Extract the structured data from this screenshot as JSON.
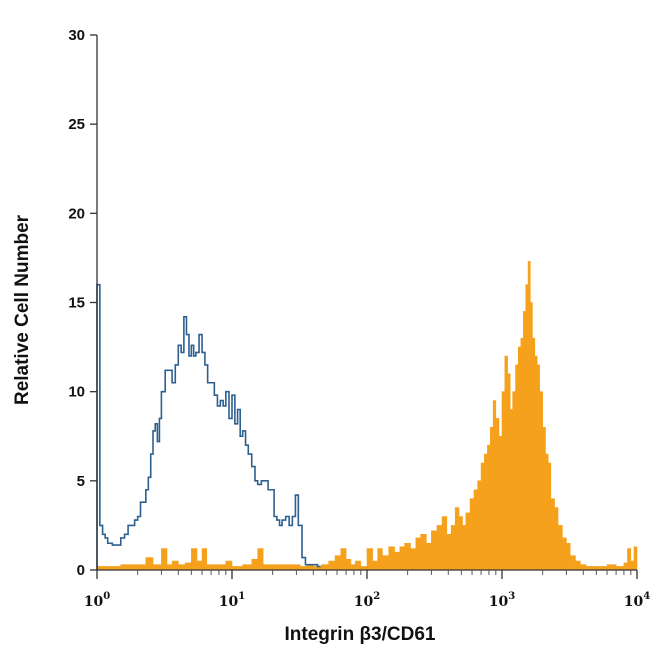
{
  "chart_data": {
    "type": "histogram",
    "xlabel": "Integrin β3/CD61",
    "ylabel": "Relative Cell Number",
    "x_scale": "log",
    "xlim": [
      1,
      10000
    ],
    "ylim": [
      0,
      30
    ],
    "y_ticks": [
      0,
      5,
      10,
      15,
      20,
      25,
      30
    ],
    "x_ticks": [
      {
        "base": "10",
        "exp": "0",
        "value": 1
      },
      {
        "base": "10",
        "exp": "1",
        "value": 10
      },
      {
        "base": "10",
        "exp": "2",
        "value": 100
      },
      {
        "base": "10",
        "exp": "3",
        "value": 1000
      },
      {
        "base": "10",
        "exp": "4",
        "value": 10000
      }
    ],
    "grid": false,
    "series": [
      {
        "style": "outline",
        "color": "#2d5f8f",
        "x": [
          1.0,
          1.05,
          1.1,
          1.15,
          1.2,
          1.3,
          1.4,
          1.5,
          1.6,
          1.7,
          1.8,
          1.9,
          2.0,
          2.1,
          2.2,
          2.3,
          2.4,
          2.5,
          2.6,
          2.7,
          2.8,
          2.9,
          3.0,
          3.2,
          3.4,
          3.6,
          3.8,
          4.0,
          4.2,
          4.4,
          4.6,
          4.8,
          5.0,
          5.2,
          5.4,
          5.7,
          6.0,
          6.3,
          6.6,
          7.0,
          7.4,
          7.8,
          8.2,
          8.6,
          9.0,
          9.5,
          10.0,
          10.5,
          11.0,
          11.5,
          12.0,
          12.6,
          13.2,
          14.0,
          14.8,
          15.5,
          16.5,
          17.5,
          18.5,
          19.5,
          20.5,
          21.5,
          22.5,
          23.5,
          25.0,
          26.5,
          28.0,
          29.5,
          31.0,
          33.0,
          35.0,
          37.0,
          39.0,
          41.0,
          43.0
        ],
        "y": [
          16.0,
          2.5,
          2.0,
          1.8,
          1.5,
          1.4,
          1.4,
          1.8,
          2.0,
          2.5,
          2.5,
          2.8,
          3.0,
          3.8,
          3.8,
          4.5,
          5.2,
          6.5,
          7.8,
          8.2,
          7.2,
          8.5,
          10.0,
          11.2,
          11.2,
          10.5,
          11.5,
          12.6,
          12.2,
          14.2,
          13.2,
          12.0,
          12.6,
          12.0,
          12.2,
          13.2,
          12.2,
          11.5,
          10.5,
          10.5,
          9.8,
          9.2,
          9.5,
          9.2,
          10.0,
          8.5,
          9.8,
          8.2,
          9.0,
          7.5,
          7.8,
          7.0,
          6.5,
          5.8,
          5.0,
          4.8,
          5.0,
          5.0,
          4.5,
          4.5,
          3.0,
          2.8,
          2.5,
          2.8,
          3.0,
          2.5,
          3.0,
          4.2,
          2.5,
          0.7,
          0.3,
          0.3,
          0.3,
          0.3,
          0.2
        ]
      },
      {
        "style": "filled",
        "color": "#f5a11c",
        "x": [
          1.0,
          1.5,
          2.0,
          2.3,
          2.6,
          3.0,
          3.3,
          3.6,
          4.0,
          4.5,
          5.0,
          5.5,
          6.0,
          6.5,
          7.0,
          8.0,
          9.0,
          10.0,
          12.0,
          14.0,
          15.5,
          17.0,
          20.0,
          24.0,
          28.0,
          32.0,
          36.0,
          40.0,
          46.0,
          52.0,
          58.0,
          64.0,
          70.0,
          76.0,
          82.0,
          90.0,
          100.0,
          110.0,
          120.0,
          130.0,
          145.0,
          160.0,
          175.0,
          190.0,
          210.0,
          230.0,
          250.0,
          275.0,
          300.0,
          330.0,
          360.0,
          390.0,
          420.0,
          450.0,
          480.0,
          510.0,
          540.0,
          580.0,
          620.0,
          660.0,
          700.0,
          740.0,
          780.0,
          820.0,
          860.0,
          900.0,
          950.0,
          1000.0,
          1050.0,
          1100.0,
          1150.0,
          1200.0,
          1260.0,
          1320.0,
          1380.0,
          1440.0,
          1500.0,
          1560.0,
          1620.0,
          1680.0,
          1750.0,
          1820.0,
          1900.0,
          2000.0,
          2100.0,
          2200.0,
          2300.0,
          2450.0,
          2600.0,
          2800.0,
          3000.0,
          3200.0,
          3500.0,
          3800.0,
          4200.0,
          5000.0,
          6000.0,
          7000.0,
          8000.0,
          8500.0,
          9000.0,
          9500.0
        ],
        "y": [
          0.2,
          0.3,
          0.3,
          0.7,
          0.3,
          1.2,
          0.3,
          0.5,
          0.3,
          0.4,
          1.2,
          0.5,
          1.2,
          0.3,
          0.3,
          0.3,
          0.5,
          0.2,
          0.3,
          0.6,
          1.2,
          0.3,
          0.3,
          0.3,
          0.3,
          0.2,
          0.3,
          0.2,
          0.3,
          0.5,
          0.8,
          1.2,
          0.6,
          0.3,
          0.5,
          0.2,
          1.2,
          0.5,
          1.2,
          0.8,
          1.3,
          1.0,
          1.3,
          1.5,
          1.2,
          1.8,
          2.0,
          1.5,
          2.2,
          2.5,
          3.0,
          2.0,
          2.5,
          3.5,
          3.0,
          2.5,
          3.2,
          4.0,
          4.5,
          5.0,
          6.0,
          6.5,
          7.0,
          8.0,
          9.5,
          8.5,
          7.5,
          10.0,
          12.0,
          11.0,
          9.0,
          10.0,
          11.5,
          12.5,
          13.0,
          14.5,
          16.0,
          17.3,
          15.0,
          13.0,
          12.0,
          11.5,
          10.0,
          8.0,
          6.5,
          6.0,
          4.0,
          3.5,
          2.5,
          1.8,
          1.5,
          0.8,
          0.5,
          0.3,
          0.2,
          0.2,
          0.3,
          0.2,
          0.4,
          1.2,
          0.5,
          1.3
        ]
      }
    ]
  }
}
